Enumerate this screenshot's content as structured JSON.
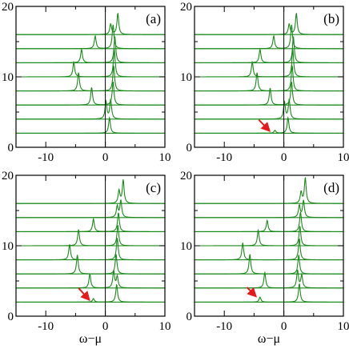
{
  "chart_data": [
    {
      "panel": "(a)",
      "type": "line",
      "xlabel": "",
      "ylabel": "",
      "xlim": [
        -15,
        10
      ],
      "ylim": [
        0,
        20
      ],
      "xticks": [
        "-10",
        "0",
        "10"
      ],
      "yticks": [
        "0",
        "10",
        "20"
      ],
      "baselines": [
        2,
        4,
        6,
        8,
        10,
        12,
        14,
        16
      ],
      "zero_line": 0,
      "series": [
        {
          "offset": 2,
          "peaks": [
            {
              "x": 0.7,
              "h": 2.2
            }
          ]
        },
        {
          "offset": 4,
          "peaks": [
            {
              "x": 0.1,
              "h": 2.5
            },
            {
              "x": 0.9,
              "h": 2.7
            }
          ]
        },
        {
          "offset": 6,
          "peaks": [
            {
              "x": -2.3,
              "h": 2.5
            },
            {
              "x": 1.3,
              "h": 3.3
            }
          ]
        },
        {
          "offset": 8,
          "peaks": [
            {
              "x": -4.5,
              "h": 2.6
            },
            {
              "x": 1.4,
              "h": 3.6
            }
          ]
        },
        {
          "offset": 10,
          "peaks": [
            {
              "x": -5.3,
              "h": 2.1
            },
            {
              "x": 1.5,
              "h": 3.9
            }
          ]
        },
        {
          "offset": 12,
          "peaks": [
            {
              "x": -4.0,
              "h": 1.9
            },
            {
              "x": 1.6,
              "h": 3.7
            }
          ]
        },
        {
          "offset": 14,
          "peaks": [
            {
              "x": -1.7,
              "h": 1.8
            },
            {
              "x": 1.3,
              "h": 3.4
            }
          ]
        },
        {
          "offset": 16,
          "peaks": [
            {
              "x": 0.9,
              "h": 1.5
            },
            {
              "x": 2.1,
              "h": 3.0
            }
          ]
        }
      ]
    },
    {
      "panel": "(b)",
      "type": "line",
      "xlabel": "",
      "ylabel": "",
      "xlim": [
        -15,
        10
      ],
      "ylim": [
        0,
        20
      ],
      "xticks": [
        "-10",
        "0",
        "10"
      ],
      "yticks": [
        "0",
        "10",
        "20"
      ],
      "baselines": [
        2,
        4,
        6,
        8,
        10,
        12,
        14,
        16
      ],
      "zero_line": 0,
      "arrow": {
        "from": [
          -4.2,
          3.9
        ],
        "to": [
          -2.5,
          2.4
        ],
        "color": "#e41a1c"
      },
      "series": [
        {
          "offset": 2,
          "peaks": [
            {
              "x": -1.5,
              "h": 0.4
            },
            {
              "x": 0.7,
              "h": 2.2
            }
          ]
        },
        {
          "offset": 4,
          "peaks": [
            {
              "x": 0.1,
              "h": 2.4
            },
            {
              "x": 0.9,
              "h": 2.7
            }
          ]
        },
        {
          "offset": 6,
          "peaks": [
            {
              "x": -2.3,
              "h": 2.4
            },
            {
              "x": 1.3,
              "h": 3.3
            }
          ]
        },
        {
          "offset": 8,
          "peaks": [
            {
              "x": -4.5,
              "h": 2.6
            },
            {
              "x": 1.4,
              "h": 3.6
            }
          ]
        },
        {
          "offset": 10,
          "peaks": [
            {
              "x": -5.3,
              "h": 2.1
            },
            {
              "x": 1.5,
              "h": 3.9
            }
          ]
        },
        {
          "offset": 12,
          "peaks": [
            {
              "x": -4.0,
              "h": 1.9
            },
            {
              "x": 1.6,
              "h": 3.7
            }
          ]
        },
        {
          "offset": 14,
          "peaks": [
            {
              "x": -1.7,
              "h": 1.8
            },
            {
              "x": 1.3,
              "h": 3.4
            }
          ]
        },
        {
          "offset": 16,
          "peaks": [
            {
              "x": 0.9,
              "h": 1.5
            },
            {
              "x": 2.1,
              "h": 3.0
            }
          ]
        }
      ]
    },
    {
      "panel": "(c)",
      "type": "line",
      "xlabel": "ω−μ",
      "ylabel": "",
      "xlim": [
        -15,
        10
      ],
      "ylim": [
        0,
        20
      ],
      "xticks": [
        "-10",
        "0",
        "10"
      ],
      "yticks": [
        "0",
        "10",
        "20"
      ],
      "baselines": [
        2,
        4,
        6,
        8,
        10,
        12,
        14,
        16
      ],
      "zero_line": 0,
      "arrow": {
        "from": [
          -4.5,
          4.0
        ],
        "to": [
          -2.8,
          2.4
        ],
        "color": "#e41a1c"
      },
      "series": [
        {
          "offset": 2,
          "peaks": [
            {
              "x": -2.0,
              "h": 0.5
            },
            {
              "x": 1.9,
              "h": 2.5
            }
          ]
        },
        {
          "offset": 4,
          "peaks": [
            {
              "x": -2.6,
              "h": 2.0
            },
            {
              "x": 1.4,
              "h": 2.4
            },
            {
              "x": 2.0,
              "h": 1.6
            }
          ]
        },
        {
          "offset": 6,
          "peaks": [
            {
              "x": -4.7,
              "h": 2.7
            },
            {
              "x": 1.8,
              "h": 2.8
            }
          ]
        },
        {
          "offset": 8,
          "peaks": [
            {
              "x": -6.0,
              "h": 2.2
            },
            {
              "x": 2.0,
              "h": 3.1
            }
          ]
        },
        {
          "offset": 10,
          "peaks": [
            {
              "x": -4.5,
              "h": 2.3
            },
            {
              "x": 2.1,
              "h": 2.9
            }
          ]
        },
        {
          "offset": 12,
          "peaks": [
            {
              "x": -2.0,
              "h": 1.8
            },
            {
              "x": 2.2,
              "h": 2.7
            }
          ]
        },
        {
          "offset": 14,
          "peaks": [
            {
              "x": 2.0,
              "h": 1.6
            },
            {
              "x": 2.6,
              "h": 2.4
            }
          ]
        },
        {
          "offset": 16,
          "peaks": [
            {
              "x": 2.3,
              "h": 1.8
            },
            {
              "x": 3.0,
              "h": 3.3
            }
          ]
        }
      ]
    },
    {
      "panel": "(d)",
      "type": "line",
      "xlabel": "ω−μ",
      "ylabel": "",
      "xlim": [
        -15,
        10
      ],
      "ylim": [
        0,
        20
      ],
      "xticks": [
        "-10",
        "0",
        "10"
      ],
      "yticks": [
        "0",
        "10",
        "20"
      ],
      "baselines": [
        2,
        4,
        6,
        8,
        10,
        12,
        14,
        16
      ],
      "zero_line": 0,
      "arrow": {
        "from": [
          -6.2,
          4.1
        ],
        "to": [
          -4.8,
          2.9
        ],
        "color": "#e41a1c"
      },
      "series": [
        {
          "offset": 2,
          "peaks": [
            {
              "x": -4.0,
              "h": 0.7
            },
            {
              "x": 2.6,
              "h": 2.6
            }
          ]
        },
        {
          "offset": 4,
          "peaks": [
            {
              "x": -3.2,
              "h": 2.2
            },
            {
              "x": 2.3,
              "h": 2.5
            },
            {
              "x": 3.0,
              "h": 1.8
            }
          ]
        },
        {
          "offset": 6,
          "peaks": [
            {
              "x": -5.7,
              "h": 2.8
            },
            {
              "x": 2.5,
              "h": 2.7
            }
          ]
        },
        {
          "offset": 8,
          "peaks": [
            {
              "x": -6.9,
              "h": 2.4
            },
            {
              "x": 2.6,
              "h": 3.0
            }
          ]
        },
        {
          "offset": 10,
          "peaks": [
            {
              "x": -4.3,
              "h": 2.2
            },
            {
              "x": 2.7,
              "h": 2.8
            }
          ]
        },
        {
          "offset": 12,
          "peaks": [
            {
              "x": -2.8,
              "h": 1.6
            },
            {
              "x": 2.8,
              "h": 2.8
            }
          ]
        },
        {
          "offset": 14,
          "peaks": [
            {
              "x": 2.6,
              "h": 1.7
            },
            {
              "x": 3.3,
              "h": 2.4
            }
          ]
        },
        {
          "offset": 16,
          "peaks": [
            {
              "x": 2.9,
              "h": 1.6
            },
            {
              "x": 3.6,
              "h": 3.6
            }
          ]
        }
      ]
    }
  ],
  "colors": {
    "curve": "#1a8a1a",
    "arrow": "#e41a1c",
    "axis": "#000000"
  }
}
